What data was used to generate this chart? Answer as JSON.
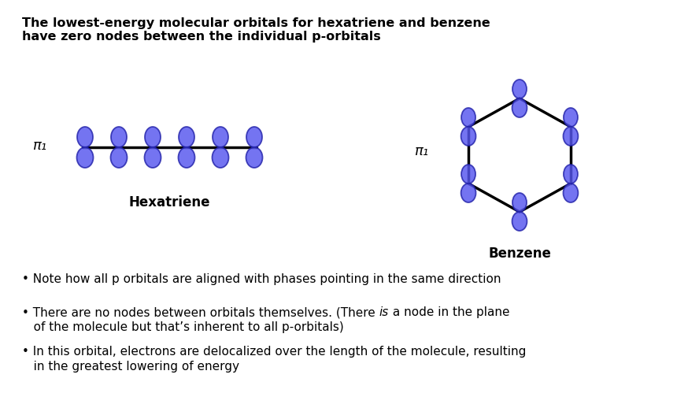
{
  "title_line1": "The lowest-energy molecular orbitals for hexatriene and benzene",
  "title_line2": "have zero nodes between the individual p-orbitals",
  "hexa_label": "Hexatriene",
  "benz_label": "Benzene",
  "pi_label": "π₁",
  "bullet1": "• Note how all p orbitals are aligned with phases pointing in the same direction",
  "bullet2_part1": "• There are no nodes between orbitals themselves. (There ",
  "bullet2_italic": "is",
  "bullet2_part2": " a node in the plane",
  "bullet2_line2": "   of the molecule but that’s inherent to all p-orbitals)",
  "bullet3_line1": "• In this orbital, electrons are delocalized over the length of the molecule, resulting",
  "bullet3_line2": "   in the greatest lowering of energy",
  "orbital_fill": "#5555ee",
  "orbital_edge": "#2222aa",
  "line_color": "#000000",
  "bg_color": "#ffffff",
  "title_fontsize": 11.5,
  "label_fontsize": 12,
  "bullet_fontsize": 11,
  "pi_fontsize": 13
}
